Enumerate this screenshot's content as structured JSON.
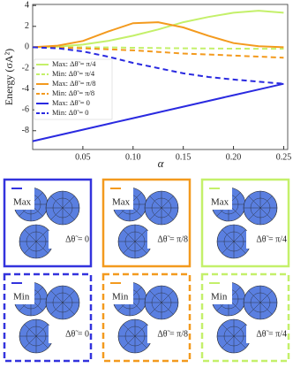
{
  "chart_data": {
    "type": "line",
    "xlabel": "α",
    "ylabel": "Energy (σA²)",
    "x": [
      0,
      0.025,
      0.05,
      0.075,
      0.1,
      0.125,
      0.15,
      0.175,
      0.2,
      0.225,
      0.25
    ],
    "series": [
      {
        "name": "Max: Δθ̃ = π/4",
        "color": "#c4f06a",
        "dashed": false,
        "values": [
          0,
          0.05,
          0.25,
          0.6,
          1.1,
          1.7,
          2.4,
          2.9,
          3.3,
          3.5,
          3.3
        ]
      },
      {
        "name": "Min: Δθ̃ = π/4",
        "color": "#c4f06a",
        "dashed": true,
        "values": [
          0,
          0,
          0,
          -0.02,
          -0.05,
          -0.08,
          -0.1,
          -0.12,
          -0.14,
          -0.15,
          -0.15
        ]
      },
      {
        "name": "Max: Δθ̃ = π/8",
        "color": "#f39a1e",
        "dashed": false,
        "values": [
          0,
          0.15,
          0.6,
          1.5,
          2.3,
          2.4,
          1.9,
          1.1,
          0.4,
          0.1,
          0
        ]
      },
      {
        "name": "Min: Δθ̃ = π/8",
        "color": "#f39a1e",
        "dashed": true,
        "values": [
          0,
          -0.03,
          -0.1,
          -0.2,
          -0.3,
          -0.45,
          -0.6,
          -0.7,
          -0.8,
          -0.9,
          -1.0
        ]
      },
      {
        "name": "Max: Δθ̃ = 0",
        "color": "#2a2ae0",
        "dashed": false,
        "values": [
          -9,
          -8.45,
          -7.9,
          -7.35,
          -6.8,
          -6.25,
          -5.7,
          -5.15,
          -4.6,
          -4.05,
          -3.5
        ]
      },
      {
        "name": "Min: Δθ̃ = 0",
        "color": "#2a2ae0",
        "dashed": true,
        "values": [
          0,
          -0.1,
          -0.4,
          -0.9,
          -1.5,
          -2.0,
          -2.5,
          -2.85,
          -3.1,
          -3.3,
          -3.5
        ]
      }
    ],
    "xlim": [
      0,
      0.254
    ],
    "ylim": [
      -9.8,
      4.1
    ],
    "xticks": [
      0.05,
      {
        "value": 0.1,
        "label": "0.10"
      },
      0.15,
      {
        "value": 0.2,
        "label": "0.20"
      },
      0.25
    ],
    "yticks": [
      -8,
      -6,
      -4,
      -2,
      0,
      2,
      4
    ],
    "legend": "upper left"
  },
  "panels": [
    {
      "label": "Max",
      "equation": "Δθ̃ = 0",
      "color": "#3333dd",
      "dashed": false
    },
    {
      "label": "Max",
      "equation": "Δθ̃ = π/8",
      "color": "#f39a1e",
      "dashed": false
    },
    {
      "label": "Max",
      "equation": "Δθ̃ = π/4",
      "color": "#c4f06a",
      "dashed": false
    },
    {
      "label": "Min",
      "equation": "Δθ̃ = 0",
      "color": "#3333dd",
      "dashed": true
    },
    {
      "label": "Min",
      "equation": "Δθ̃ = π/8",
      "color": "#f39a1e",
      "dashed": true
    },
    {
      "label": "Min",
      "equation": "Δθ̃ = π/4",
      "color": "#c4f06a",
      "dashed": true
    }
  ]
}
